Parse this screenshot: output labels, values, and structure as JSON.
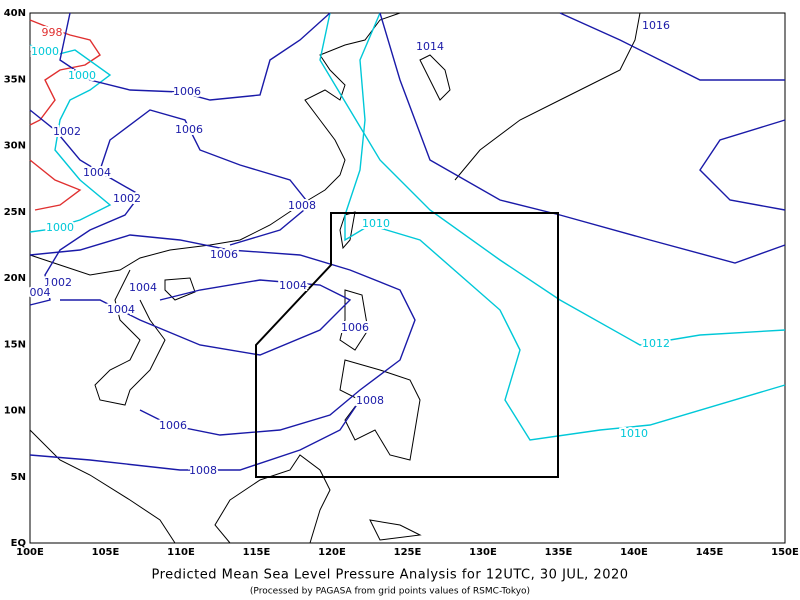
{
  "title": "Predicted Mean Sea Level Pressure Analysis for 12UTC, 30 JUL, 2020",
  "subtitle": "(Processed by PAGASA from grid points values of RSMC-Tokyo)",
  "x_axis_labels": [
    "100E",
    "105E",
    "110E",
    "115E",
    "120E",
    "125E",
    "130E",
    "135E",
    "140E",
    "145E",
    "150E"
  ],
  "y_axis_labels": [
    "40N",
    "35N",
    "30N",
    "25N",
    "20N",
    "15N",
    "10N",
    "5N",
    "EQ"
  ],
  "contour_labels": [
    "998",
    "1000",
    "1000",
    "1000",
    "1010",
    "1012",
    "1010",
    "1002",
    "1004",
    "1002",
    "1006",
    "1006",
    "1008",
    "1006",
    "1002",
    "004",
    "1004",
    "1004",
    "1004",
    "1006",
    "1008",
    "1006",
    "1008",
    "1014",
    "1016"
  ]
}
